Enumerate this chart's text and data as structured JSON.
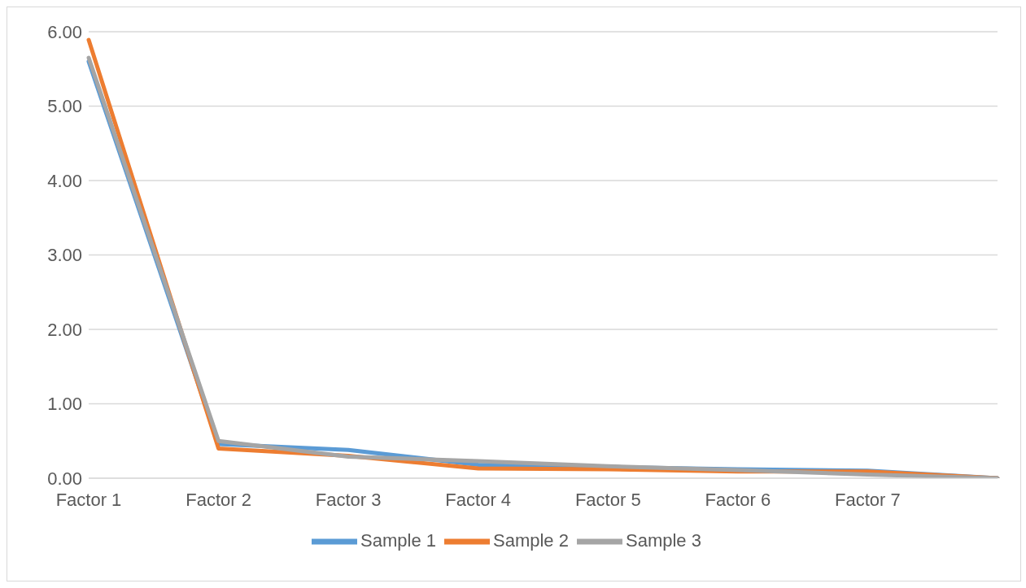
{
  "chart_data": {
    "type": "line",
    "categories": [
      "Factor 1",
      "Factor 2",
      "Factor 3",
      "Factor 4",
      "Factor 5",
      "Factor 6",
      "Factor 7",
      null
    ],
    "series": [
      {
        "name": "Sample 1",
        "color": "#5b9bd5",
        "values": [
          5.6,
          0.46,
          0.38,
          0.18,
          0.15,
          0.12,
          0.1,
          0
        ]
      },
      {
        "name": "Sample 2",
        "color": "#ed7d31",
        "values": [
          5.89,
          0.4,
          0.3,
          0.13,
          0.12,
          0.09,
          0.09,
          0
        ]
      },
      {
        "name": "Sample 3",
        "color": "#a5a5a5",
        "values": [
          5.65,
          0.5,
          0.29,
          0.23,
          0.16,
          0.11,
          0.05,
          0
        ]
      }
    ],
    "ylim": [
      0,
      6
    ],
    "yticks": [
      {
        "value": 0,
        "label": "0.00"
      },
      {
        "value": 1,
        "label": "1.00"
      },
      {
        "value": 2,
        "label": "2.00"
      },
      {
        "value": 3,
        "label": "3.00"
      },
      {
        "value": 4,
        "label": "4.00"
      },
      {
        "value": 5,
        "label": "5.00"
      },
      {
        "value": 6,
        "label": "6.00"
      }
    ],
    "grid": "y",
    "legend": "bottom",
    "marker": "none",
    "line_style": "solid"
  }
}
